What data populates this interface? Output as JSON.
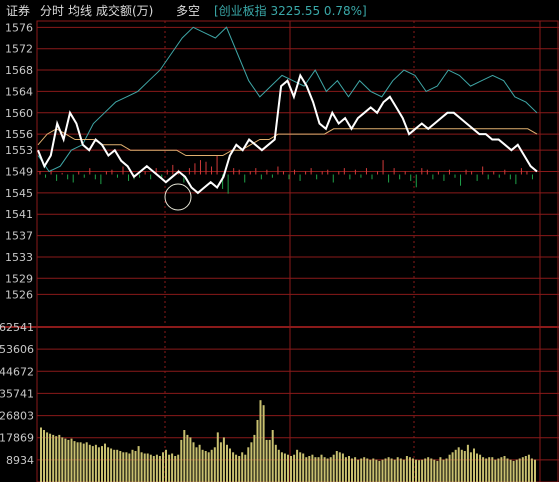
{
  "header": {
    "tab_zhengquan": "证券",
    "tab_fenshi": "分时",
    "tab_junxian": "均线",
    "tab_volume": "成交额(万)",
    "tab_duokong": "多空",
    "index_info": "[创业板指 3225.55 0.78%]"
  },
  "colors": {
    "background": "#000000",
    "grid": "#8a1a1a",
    "price_line": "#ffffff",
    "avg_line": "#e0b070",
    "index_line": "#3fa6a6",
    "up_bar": "#d23a3a",
    "down_bar": "#1fa24a",
    "volume_bar": "#c8c070",
    "axis_text": "#c8c8c8"
  },
  "chart_data": [
    {
      "type": "line",
      "y_ticks": [
        "1576",
        "1572",
        "1568",
        "1564",
        "1560",
        "1556",
        "1553",
        "1549",
        "1545",
        "1541",
        "1537",
        "1533",
        "1529",
        "1526"
      ],
      "ylim": [
        1524,
        1577
      ],
      "series": [
        {
          "values": [
            1553,
            1550,
            1552,
            1558,
            1555,
            1560,
            1558,
            1554,
            1553,
            1555,
            1554,
            1552,
            1553,
            1551,
            1550,
            1548,
            1549,
            1550,
            1549,
            1548,
            1547,
            1548,
            1549,
            1548,
            1546,
            1545,
            1546,
            1547,
            1546,
            1548,
            1552,
            1554,
            1553,
            1555,
            1554,
            1553,
            1554,
            1555,
            1565,
            1566,
            1563,
            1567,
            1565,
            1562,
            1558,
            1557,
            1560,
            1558,
            1559,
            1557,
            1559,
            1560,
            1561,
            1560,
            1562,
            1563,
            1561,
            1559,
            1556,
            1557,
            1558,
            1557,
            1558,
            1559,
            1560,
            1560,
            1559,
            1558,
            1557,
            1556,
            1556,
            1555,
            1555,
            1554,
            1553,
            1554,
            1552,
            1550,
            1549
          ]
        },
        {
          "values": [
            1554,
            1556,
            1557,
            1556,
            1555,
            1555,
            1555,
            1554,
            1554,
            1554,
            1553,
            1553,
            1553,
            1553,
            1553,
            1553,
            1552,
            1552,
            1552,
            1552,
            1552,
            1553,
            1553,
            1554,
            1555,
            1555,
            1556,
            1556,
            1556,
            1556,
            1556,
            1556,
            1557,
            1557,
            1557,
            1557,
            1557,
            1557,
            1557,
            1557,
            1557,
            1557,
            1557,
            1557,
            1557,
            1557,
            1557,
            1557,
            1557,
            1557,
            1557,
            1557,
            1557,
            1557,
            1556
          ]
        },
        {
          "values": [
            1552,
            1549,
            1550,
            1553,
            1554,
            1558,
            1560,
            1562,
            1563,
            1564,
            1566,
            1568,
            1571,
            1574,
            1576,
            1575,
            1574,
            1576,
            1571,
            1566,
            1563,
            1565,
            1567,
            1566,
            1565,
            1568,
            1564,
            1566,
            1563,
            1566,
            1564,
            1563,
            1566,
            1568,
            1567,
            1564,
            1565,
            1568,
            1567,
            1565,
            1566,
            1567,
            1566,
            1563,
            1562,
            1560
          ]
        }
      ]
    },
    {
      "type": "bar",
      "values": [
        2,
        -2,
        3,
        -4,
        1,
        -3,
        -5,
        2,
        -2,
        4,
        -3,
        -6,
        2,
        3,
        -2,
        5,
        -4,
        -3,
        -2,
        2,
        -3,
        4,
        -2,
        3,
        6,
        3,
        -5,
        4,
        7,
        9,
        8,
        5,
        12,
        -9,
        -12,
        4,
        3,
        -5,
        2,
        4,
        -3,
        3,
        -2,
        5,
        2,
        -3,
        3,
        -4,
        2,
        4,
        -3,
        2,
        3,
        -5,
        2,
        4,
        -3,
        3,
        -2,
        4,
        -3,
        2,
        9,
        -5,
        4,
        -3,
        2,
        -4,
        -8,
        4,
        3,
        -3,
        2,
        -4,
        3,
        -2,
        -7,
        3,
        2,
        -4,
        5,
        -3,
        2,
        -2,
        3,
        -3,
        -6,
        4,
        2,
        -3
      ]
    },
    {
      "type": "bar",
      "y_ticks": [
        "62541",
        "53606",
        "44672",
        "35741",
        "26803",
        "17869",
        "8934"
      ],
      "ylim": [
        0,
        62541
      ],
      "values": [
        22000,
        21000,
        20000,
        19500,
        19000,
        18500,
        19000,
        18000,
        17500,
        17000,
        17500,
        16500,
        16000,
        16000,
        15500,
        16000,
        15000,
        14500,
        15000,
        14000,
        14500,
        15500,
        14000,
        13500,
        13000,
        13000,
        12500,
        12000,
        12000,
        11500,
        13000,
        12500,
        14500,
        12000,
        11500,
        11500,
        11000,
        10500,
        11000,
        10500,
        12000,
        13000,
        11000,
        11500,
        10500,
        11000,
        17000,
        21000,
        19000,
        18000,
        16000,
        14000,
        15000,
        13000,
        12500,
        12000,
        13000,
        14000,
        20000,
        16000,
        18000,
        15000,
        13500,
        12000,
        11000,
        10500,
        12000,
        11000,
        14000,
        16000,
        19000,
        25000,
        33000,
        31000,
        17000,
        17000,
        21000,
        15000,
        13000,
        12000,
        11500,
        11000,
        10500,
        11000,
        13000,
        12000,
        11500,
        10000,
        10500,
        11000,
        10000,
        10000,
        11000,
        10000,
        9500,
        10000,
        11000,
        12500,
        12000,
        11500,
        10000,
        10500,
        9500,
        10000,
        9000,
        9500,
        10000,
        9500,
        9000,
        9500,
        9000,
        8500,
        9000,
        9500,
        10000,
        9500,
        9000,
        10000,
        9500,
        9000,
        10500,
        10000,
        9500,
        9000,
        8800,
        9000,
        9500,
        10000,
        9500,
        9000,
        8500,
        10000,
        9000,
        9500,
        11000,
        12000,
        13000,
        14000,
        13000,
        12500,
        15000,
        12000,
        13500,
        11500,
        11000,
        10000,
        9500,
        10000,
        10000,
        9000,
        9500,
        10000,
        10500,
        9500,
        9000,
        8500,
        9000,
        9500,
        10000,
        10500,
        11000,
        9500,
        9000
      ]
    }
  ]
}
